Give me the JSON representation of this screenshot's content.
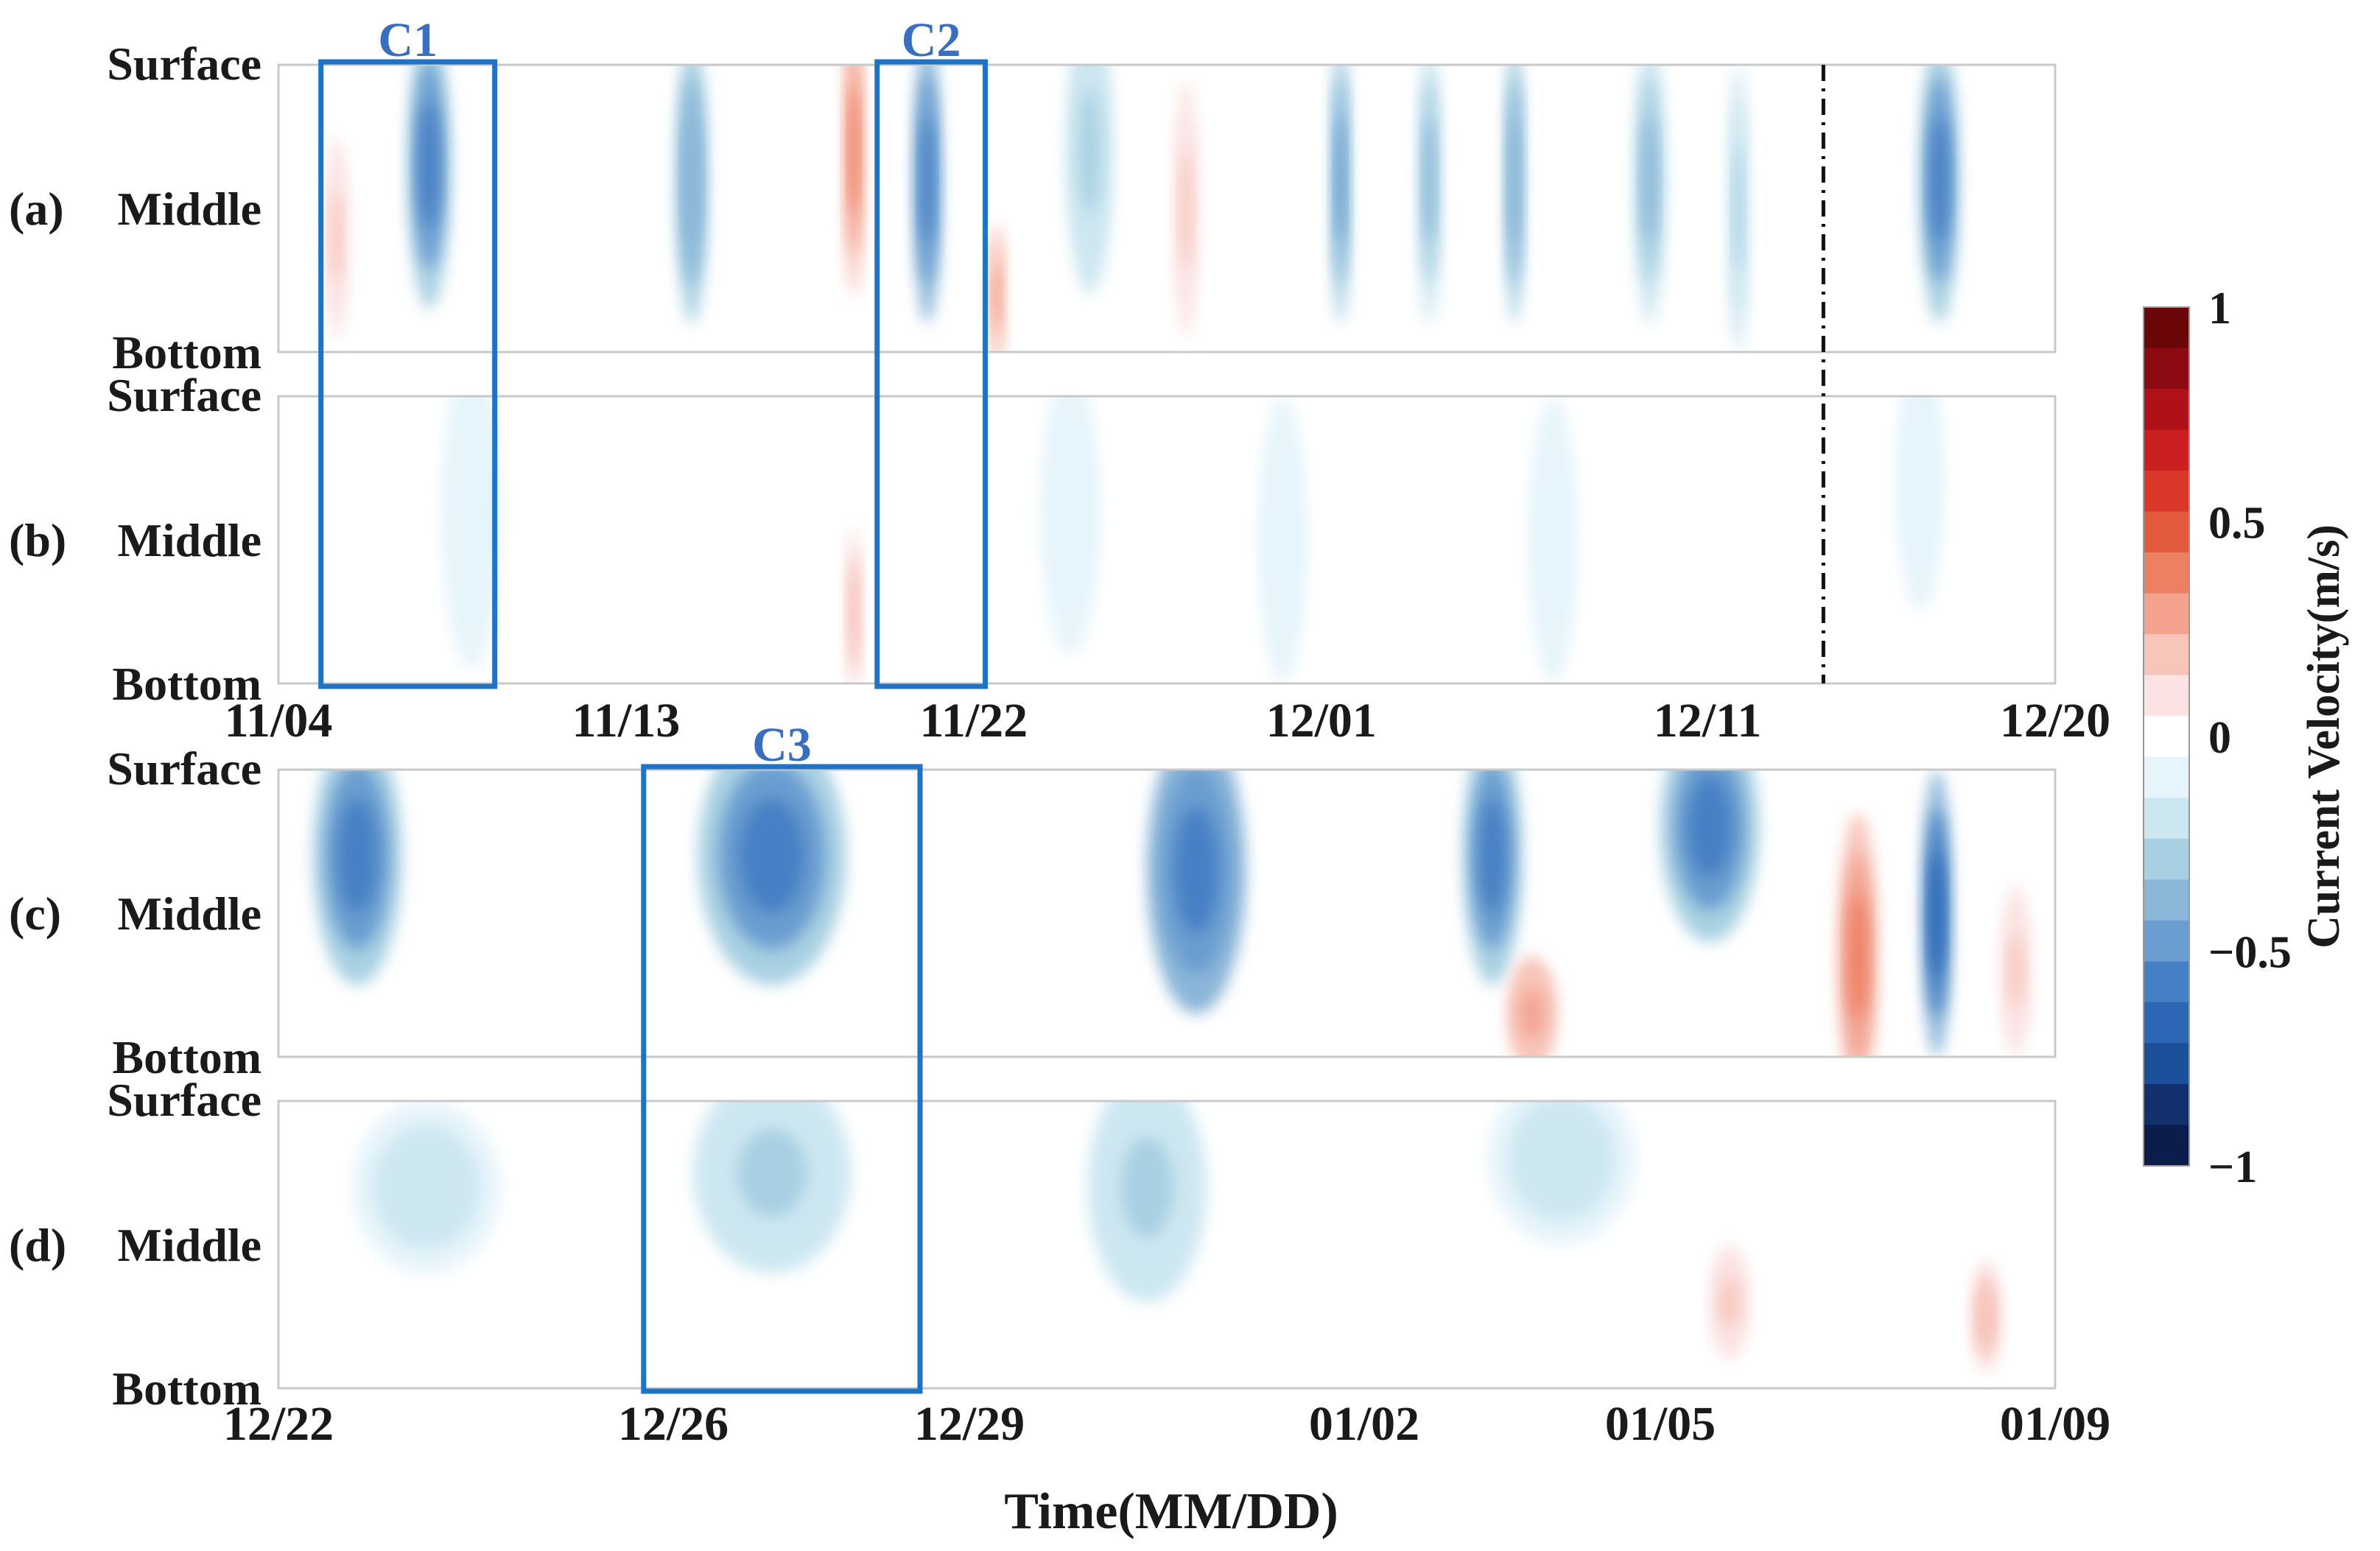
{
  "chart_data": {
    "type": "heatmap",
    "xlabel": "Time(MM/DD)",
    "colorbar": {
      "label": "Current Velocity(m/s)",
      "ticks": [
        1,
        0.5,
        0,
        -0.5,
        -1
      ],
      "tick_labels": [
        "1",
        "0.5",
        "0",
        "−0.5",
        "−1"
      ],
      "range": [
        -1,
        1
      ],
      "colors": [
        "#0b1d4a",
        "#12306e",
        "#1b4f9a",
        "#2c66b4",
        "#4680c4",
        "#6b9dd0",
        "#8ab6d8",
        "#a8d0e2",
        "#cde7f1",
        "#e6f4fb",
        "#ffffff",
        "#fbe3e3",
        "#f7c5ba",
        "#f3a28e",
        "#ed7f62",
        "#e35a3c",
        "#d9382b",
        "#c91f20",
        "#ae1118",
        "#8c0a12",
        "#6a0508"
      ]
    },
    "depth_labels": [
      "Surface",
      "Middle",
      "Bottom"
    ],
    "top_axis": {
      "tick_labels": [
        "11/04",
        "11/13",
        "11/22",
        "12/01",
        "12/11",
        "12/20"
      ],
      "tick_days": [
        0,
        9,
        18,
        27,
        37,
        46
      ],
      "range_days": [
        0,
        46
      ],
      "dash_line_day": 40
    },
    "bottom_axis": {
      "tick_labels": [
        "12/22",
        "12/26",
        "12/29",
        "01/02",
        "01/05",
        "01/09"
      ],
      "tick_days": [
        0,
        4,
        7,
        11,
        14,
        18
      ],
      "range_days": [
        0,
        18
      ]
    },
    "panels": [
      {
        "label": "(a)",
        "axis": "top",
        "blobs": [
          {
            "day": 1.5,
            "depth": 0.6,
            "value": 0.18,
            "width": 0.6,
            "height": 0.7
          },
          {
            "day": 3.9,
            "depth": 0.35,
            "value": -0.6,
            "width": 1.1,
            "height": 1.0
          },
          {
            "day": 10.7,
            "depth": 0.4,
            "value": -0.45,
            "width": 0.8,
            "height": 1.0
          },
          {
            "day": 14.9,
            "depth": 0.3,
            "value": 0.4,
            "width": 0.5,
            "height": 1.0
          },
          {
            "day": 16.8,
            "depth": 0.4,
            "value": -0.65,
            "width": 0.7,
            "height": 1.0
          },
          {
            "day": 18.6,
            "depth": 0.8,
            "value": 0.3,
            "width": 0.4,
            "height": 0.5
          },
          {
            "day": 21.0,
            "depth": 0.3,
            "value": -0.3,
            "width": 1.2,
            "height": 1.0
          },
          {
            "day": 23.5,
            "depth": 0.5,
            "value": 0.15,
            "width": 0.6,
            "height": 0.9
          },
          {
            "day": 27.5,
            "depth": 0.4,
            "value": -0.5,
            "width": 0.5,
            "height": 1.0
          },
          {
            "day": 29.8,
            "depth": 0.4,
            "value": -0.4,
            "width": 0.6,
            "height": 1.0
          },
          {
            "day": 32.0,
            "depth": 0.4,
            "value": -0.45,
            "width": 0.5,
            "height": 1.0
          },
          {
            "day": 35.5,
            "depth": 0.4,
            "value": -0.4,
            "width": 0.8,
            "height": 1.0
          },
          {
            "day": 37.8,
            "depth": 0.5,
            "value": -0.3,
            "width": 0.5,
            "height": 1.0
          },
          {
            "day": 43.0,
            "depth": 0.4,
            "value": -0.6,
            "width": 1.0,
            "height": 1.0
          }
        ]
      },
      {
        "label": "(b)",
        "axis": "top",
        "blobs": [
          {
            "day": 5.0,
            "depth": 0.4,
            "value": -0.1,
            "width": 1.5,
            "height": 1.1
          },
          {
            "day": 14.9,
            "depth": 0.75,
            "value": 0.22,
            "width": 0.4,
            "height": 0.6
          },
          {
            "day": 20.5,
            "depth": 0.4,
            "value": -0.12,
            "width": 1.5,
            "height": 1.0
          },
          {
            "day": 26.0,
            "depth": 0.5,
            "value": -0.1,
            "width": 1.2,
            "height": 1.0
          },
          {
            "day": 33.0,
            "depth": 0.5,
            "value": -0.1,
            "width": 1.2,
            "height": 1.0
          },
          {
            "day": 42.5,
            "depth": 0.3,
            "value": -0.15,
            "width": 1.2,
            "height": 0.9
          }
        ]
      },
      {
        "label": "(c)",
        "axis": "bottom",
        "blobs": [
          {
            "day": 0.8,
            "depth": 0.3,
            "value": -0.6,
            "width": 0.9,
            "height": 0.9
          },
          {
            "day": 5.0,
            "depth": 0.3,
            "value": -0.6,
            "width": 1.5,
            "height": 0.9
          },
          {
            "day": 9.3,
            "depth": 0.35,
            "value": -0.65,
            "width": 1.0,
            "height": 1.0
          },
          {
            "day": 12.3,
            "depth": 0.3,
            "value": -0.6,
            "width": 0.6,
            "height": 0.9
          },
          {
            "day": 14.5,
            "depth": 0.2,
            "value": -0.6,
            "width": 1.0,
            "height": 0.8
          },
          {
            "day": 12.7,
            "depth": 0.85,
            "value": 0.3,
            "width": 0.5,
            "height": 0.4
          },
          {
            "day": 16.0,
            "depth": 0.65,
            "value": 0.35,
            "width": 0.4,
            "height": 1.0
          },
          {
            "day": 16.8,
            "depth": 0.5,
            "value": -0.75,
            "width": 0.3,
            "height": 1.0
          },
          {
            "day": 17.6,
            "depth": 0.7,
            "value": 0.15,
            "width": 0.3,
            "height": 0.6
          }
        ]
      },
      {
        "label": "(d)",
        "axis": "bottom",
        "blobs": [
          {
            "day": 1.5,
            "depth": 0.3,
            "value": -0.2,
            "width": 1.5,
            "height": 0.6
          },
          {
            "day": 5.0,
            "depth": 0.25,
            "value": -0.3,
            "width": 1.6,
            "height": 0.7
          },
          {
            "day": 8.8,
            "depth": 0.3,
            "value": -0.3,
            "width": 1.2,
            "height": 0.8
          },
          {
            "day": 13.0,
            "depth": 0.2,
            "value": -0.2,
            "width": 1.5,
            "height": 0.6
          },
          {
            "day": 14.7,
            "depth": 0.7,
            "value": 0.15,
            "width": 0.4,
            "height": 0.4
          },
          {
            "day": 17.3,
            "depth": 0.75,
            "value": 0.2,
            "width": 0.3,
            "height": 0.4
          }
        ]
      }
    ],
    "annotation_boxes": [
      {
        "label": "C1",
        "panel_group": "top",
        "day_start": 1.1,
        "day_end": 5.6
      },
      {
        "label": "C2",
        "panel_group": "top",
        "day_start": 15.5,
        "day_end": 18.3
      },
      {
        "label": "C3",
        "panel_group": "bottom",
        "day_start": 3.7,
        "day_end": 6.5
      }
    ]
  }
}
